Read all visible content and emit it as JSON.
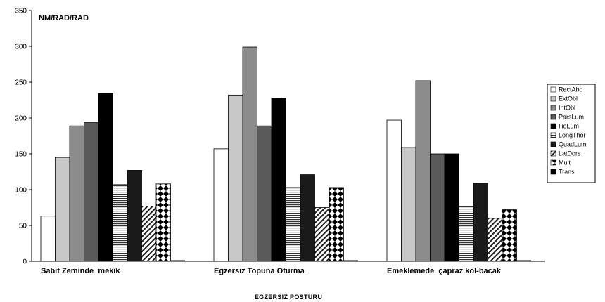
{
  "chart_data": {
    "type": "bar",
    "ylabel": "NM/RAD/RAD",
    "xlabel": "EGZERSİZ POSTÜRÜ",
    "ylim": [
      0,
      350
    ],
    "yticks": [
      0,
      50,
      100,
      150,
      200,
      250,
      300,
      350
    ],
    "grid": false,
    "legend_position": "right",
    "categories": [
      "Sabit Zeminde  mekik",
      "Egzersiz Topuna Oturma",
      "Emeklemede  çapraz kol-bacak"
    ],
    "series": [
      {
        "name": "RectAbd",
        "values": [
          63,
          157,
          197
        ],
        "fill": "#ffffff",
        "pattern": "none"
      },
      {
        "name": "ExtObl",
        "values": [
          145,
          232,
          159
        ],
        "fill": "#c8c8c8",
        "pattern": "none"
      },
      {
        "name": "IntObl",
        "values": [
          189,
          299,
          252
        ],
        "fill": "#8c8c8c",
        "pattern": "none"
      },
      {
        "name": "ParsLum",
        "values": [
          194,
          189,
          150
        ],
        "fill": "#5a5a5a",
        "pattern": "none"
      },
      {
        "name": "IlioLum",
        "values": [
          234,
          228,
          150
        ],
        "fill": "#000000",
        "pattern": "none"
      },
      {
        "name": "LongThor",
        "values": [
          107,
          103,
          77
        ],
        "fill": "#ffffff",
        "pattern": "hstripes"
      },
      {
        "name": "QuadLum",
        "values": [
          127,
          121,
          109
        ],
        "fill": "#1a1a1a",
        "pattern": "none"
      },
      {
        "name": "LatDors",
        "values": [
          77,
          75,
          60
        ],
        "fill": "#ffffff",
        "pattern": "diag"
      },
      {
        "name": "Mult",
        "values": [
          108,
          103,
          72
        ],
        "fill": "#ffffff",
        "pattern": "checker"
      },
      {
        "name": "Trans",
        "values": [
          0,
          0,
          0
        ],
        "fill": "#000000",
        "pattern": "none"
      }
    ]
  }
}
